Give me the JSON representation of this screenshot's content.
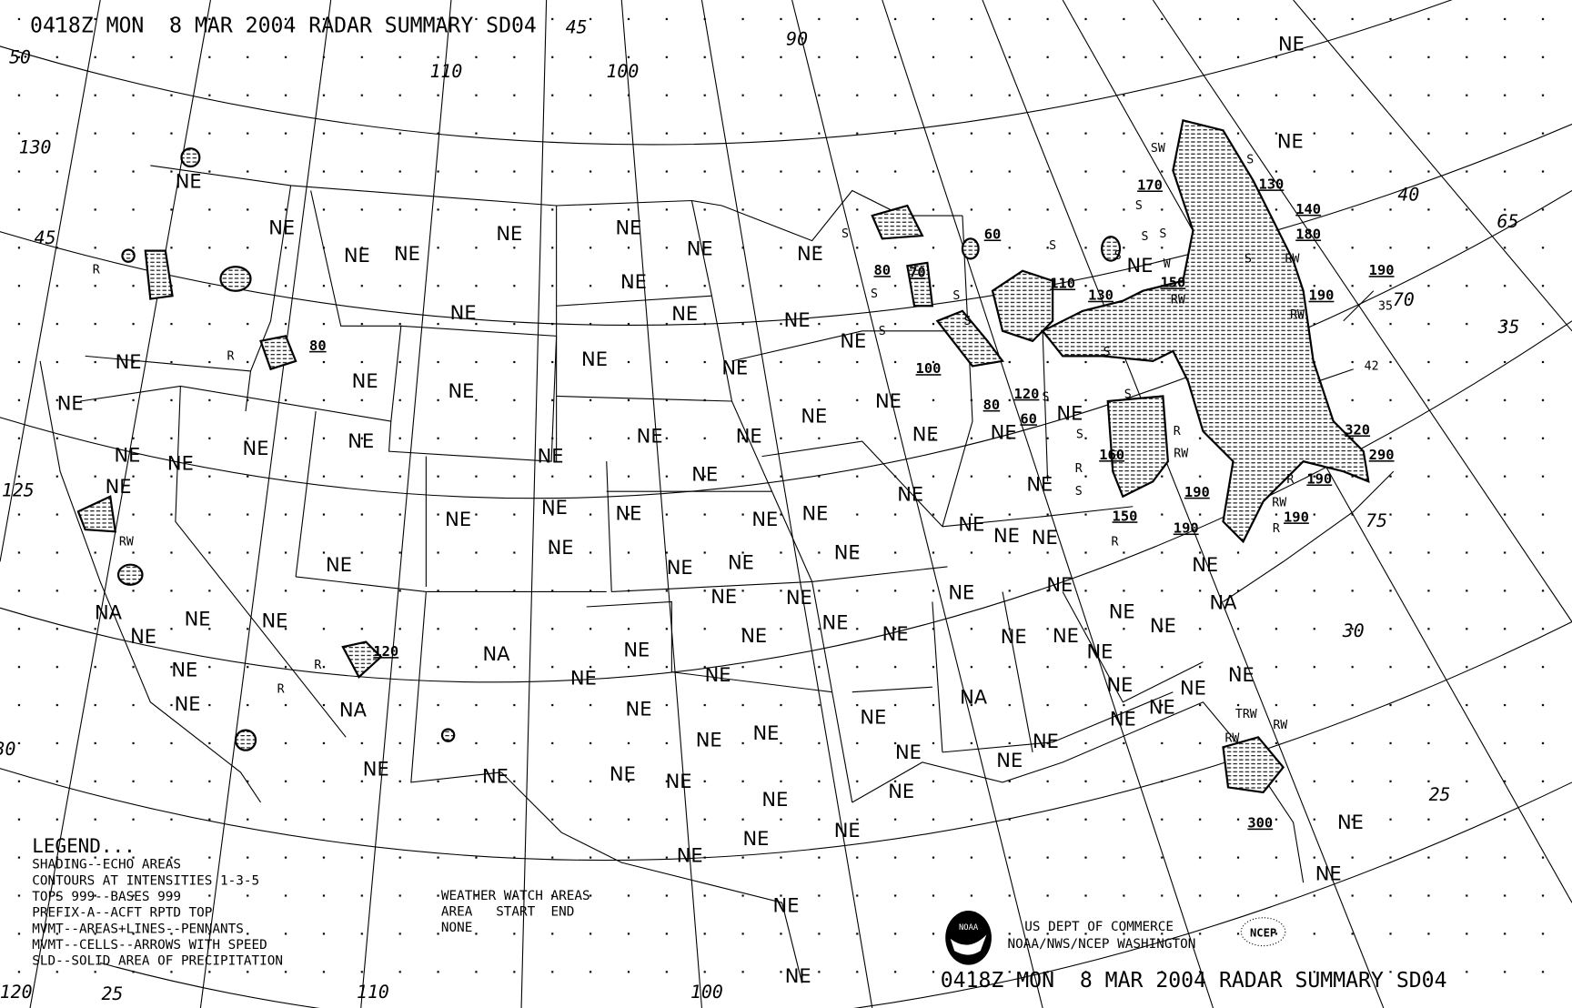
{
  "header": {
    "title": "0418Z MON  8 MAR 2004 RADAR SUMMARY SD04"
  },
  "footer": {
    "title": "0418Z MON  8 MAR 2004 RADAR SUMMARY SD04",
    "agency_line1": "US DEPT OF COMMERCE",
    "agency_line2": "NOAA/NWS/NCEP WASHINGTON",
    "noaa_logo_text": "NOAA",
    "ncep_logo_text": "NCEP"
  },
  "legend": {
    "heading": "LEGEND...",
    "lines": [
      "SHADING--ECHO AREAS",
      "CONTOURS AT INTENSITIES 1-3-5",
      "TOPS 999--BASES 999",
      "PREFIX-A--ACFT RPTD TOP",
      "MVMT--AREAS+LINES--PENNANTS",
      "MVMT--CELLS--ARROWS WITH SPEED",
      "SLD--SOLID AREA OF PRECIPITATION"
    ]
  },
  "watch_areas": {
    "heading": "WEATHER WATCH AREAS",
    "columns": "AREA   START  END",
    "value": "NONE"
  },
  "colors": {
    "ink": "#000000",
    "background": "#ffffff"
  },
  "echo_labels": [
    "NE",
    "NE",
    "NE",
    "NE",
    "NE",
    "NE",
    "NE",
    "NE",
    "NE",
    "NE",
    "NE",
    "NE",
    "NE",
    "NE",
    "NE",
    "NE",
    "NE",
    "NE",
    "NE",
    "NE",
    "NE",
    "NE",
    "NE",
    "NE",
    "NE",
    "NE",
    "NE",
    "NE",
    "NE",
    "NE",
    "NE",
    "NE",
    "NE",
    "NE",
    "NE",
    "NE",
    "NE",
    "NE",
    "NE",
    "NE",
    "NE",
    "NE",
    "NE",
    "NE",
    "NE",
    "NE",
    "NE",
    "NE",
    "NE",
    "NE",
    "NE",
    "NE",
    "NE",
    "NE",
    "NE",
    "NE",
    "NE",
    "NE",
    "NE",
    "NE",
    "NE",
    "NE",
    "NE",
    "NE",
    "NE",
    "NE",
    "NE",
    "NE",
    "NE",
    "NE",
    "NE",
    "NE",
    "NE",
    "NE",
    "NE",
    "NE",
    "NE",
    "NE",
    "NE",
    "NE",
    "NE",
    "NE",
    "NE",
    "NE",
    "NE",
    "NE",
    "NE",
    "NE",
    "NE",
    "NE",
    "NE",
    "NE",
    "NE",
    "NE",
    "NE",
    "NE",
    "NE",
    "NA",
    "NA",
    "NA",
    "NA",
    "NA"
  ],
  "tops": [
    "80",
    "120",
    "60",
    "80",
    "70",
    "110",
    "130",
    "150",
    "170",
    "130",
    "140",
    "180",
    "190",
    "190",
    "100",
    "120",
    "80",
    "60",
    "160",
    "150",
    "190",
    "190",
    "190",
    "190",
    "320",
    "290",
    "300"
  ],
  "precip_types": [
    "R",
    "R",
    "RW",
    "R",
    "R",
    "S",
    "S",
    "S",
    "S",
    "S",
    "SW",
    "S",
    "S",
    "S",
    "S",
    "W",
    "S",
    "S",
    "S",
    "S",
    "R",
    "RW",
    "R",
    "S",
    "R",
    "RW",
    "RW",
    "RW",
    "RW",
    "R",
    "R",
    "TRW",
    "RW",
    "RW",
    "S",
    "S",
    "S"
  ],
  "cell_speeds": [
    "35",
    "42"
  ],
  "grid_labels": [
    "50",
    "130",
    "45",
    "125",
    "30",
    "120",
    "25",
    "110",
    "100",
    "110",
    "100",
    "90",
    "45",
    "40",
    "65",
    "70",
    "35",
    "75",
    "30",
    "25"
  ]
}
